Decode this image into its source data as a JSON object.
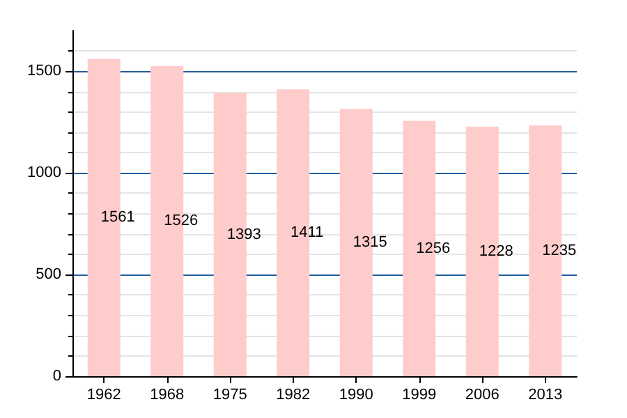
{
  "chart_data": {
    "type": "bar",
    "categories": [
      "1962",
      "1968",
      "1975",
      "1982",
      "1990",
      "1999",
      "2006",
      "2013"
    ],
    "values": [
      1561,
      1526,
      1393,
      1411,
      1315,
      1256,
      1228,
      1235
    ],
    "color": "#ffcccc",
    "ylim": [
      0,
      1700
    ],
    "yticks": [
      0,
      500,
      1000,
      1500
    ],
    "grid": "y",
    "data_labels": true
  }
}
